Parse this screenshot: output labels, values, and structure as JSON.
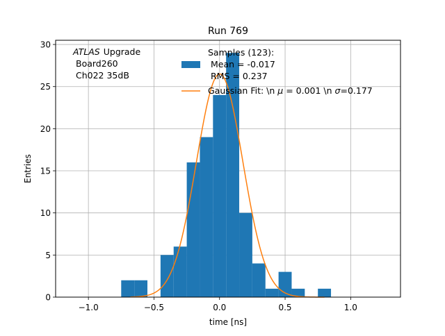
{
  "chart_data": {
    "type": "bar",
    "title": "Run 769",
    "xlabel": "time [ns]",
    "ylabel": "Entries",
    "xlim": [
      -1.25,
      1.38
    ],
    "ylim": [
      0,
      30.5
    ],
    "xticks": [
      -1.0,
      -0.5,
      0.0,
      0.5,
      1.0
    ],
    "xtick_labels": [
      "−1.0",
      "−0.5",
      "0.0",
      "0.5",
      "1.0"
    ],
    "yticks": [
      0,
      5,
      10,
      15,
      20,
      25,
      30
    ],
    "ytick_labels": [
      "0",
      "5",
      "10",
      "15",
      "20",
      "25",
      "30"
    ],
    "grid": true,
    "legend_position": "top-right",
    "histogram": {
      "name": "Samples (123):\n Mean = -0.017\n RMS = 0.237",
      "color": "#1f77b4",
      "bin_edges": [
        -0.75,
        -0.65,
        -0.55,
        -0.45,
        -0.35,
        -0.25,
        -0.15,
        -0.05,
        0.05,
        0.15,
        0.25,
        0.35,
        0.45,
        0.55,
        0.65,
        0.75,
        0.85
      ],
      "counts": [
        2,
        2,
        0,
        5,
        6,
        16,
        19,
        24,
        29,
        10,
        4,
        1,
        3,
        1,
        0,
        1
      ]
    },
    "fit": {
      "name": "Gaussian Fit: \\n μ = 0.001 \\n σ=0.177",
      "color": "#ff7f0e",
      "mu": 0.001,
      "sigma": 0.177,
      "amplitude": 26.5,
      "x_range": [
        -0.68,
        0.8
      ]
    },
    "annotation": {
      "atlas": "ATLAS",
      "upgrade": "Upgrade",
      "line2": "Board260",
      "line3": "Ch022 35dB"
    },
    "legend": {
      "samples_line1": "Samples (123):",
      "samples_line2": "Mean = -0.017",
      "samples_line3": "RMS = 0.237",
      "fit_prefix": "Gaussian Fit: \\n ",
      "fit_mu_symbol": "μ",
      "fit_mu_value": " = 0.001 \\n ",
      "fit_sigma_symbol": "σ",
      "fit_sigma_value": "=0.177"
    }
  }
}
